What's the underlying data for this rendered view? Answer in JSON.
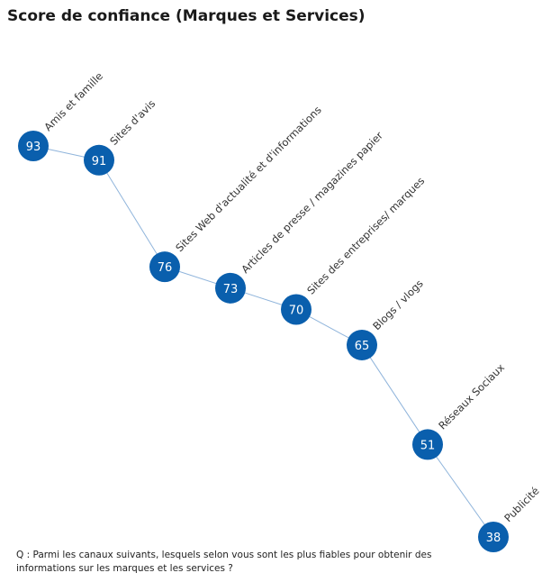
{
  "chart_data": {
    "type": "line",
    "title": "Score de confiance (Marques et Services)",
    "categories": [
      "Amis et famille",
      "Sites d'avis",
      "Sites Web d'actualité et d'informations",
      "Articles de presse / magazines papier",
      "Sites des entreprises/ marques",
      "Blogs / vlogs",
      "Réseaux Sociaux",
      "Publicité"
    ],
    "series": [
      {
        "values": [
          93,
          91,
          76,
          73,
          70,
          65,
          51,
          38
        ]
      }
    ],
    "ylim": [
      38,
      93
    ],
    "grid": false,
    "xlabel": "",
    "ylabel": "",
    "colors": {
      "marker": "#0a5fad",
      "line": "#8fb4db",
      "label": "#333333",
      "marker_text": "#ffffff"
    }
  },
  "footnote": "Q : Parmi les canaux suivants, lesquels selon vous sont les plus fiables pour obtenir des informations sur les marques et les services ?"
}
